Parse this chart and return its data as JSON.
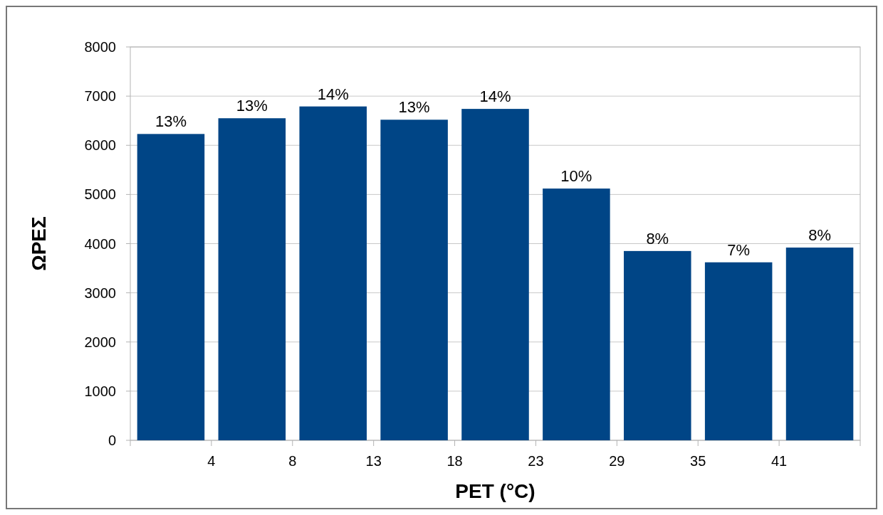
{
  "chart_data": {
    "type": "bar",
    "xlabel": "PET (°C)",
    "ylabel": "ΩΡΕΣ",
    "categories": [
      null,
      null,
      null,
      null,
      null,
      null,
      null,
      null,
      null
    ],
    "values": [
      6230,
      6550,
      6790,
      6520,
      6740,
      5120,
      3850,
      3620,
      3920
    ],
    "annotations": [
      "4",
      "8",
      "13",
      "18",
      "23",
      "29",
      "35",
      "41",
      {
        "text": "13%",
        "y": 6230
      },
      {
        "text": "13%",
        "y": 6550
      },
      {
        "text": "14%",
        "y": 6790
      },
      {
        "text": "13%",
        "y": 6520
      },
      {
        "text": "14%",
        "y": 6740
      },
      {
        "text": "10%",
        "y": 5120
      },
      {
        "text": "8%",
        "y": 3850
      },
      {
        "text": "7%",
        "y": 3620
      },
      {
        "text": "8%",
        "y": 3920
      }
    ],
    "color": "#004586",
    "ylim": [
      0,
      8000
    ],
    "yticks": [
      0,
      1000,
      2000,
      3000,
      4000,
      5000,
      6000,
      7000,
      8000
    ],
    "grid": "y"
  }
}
